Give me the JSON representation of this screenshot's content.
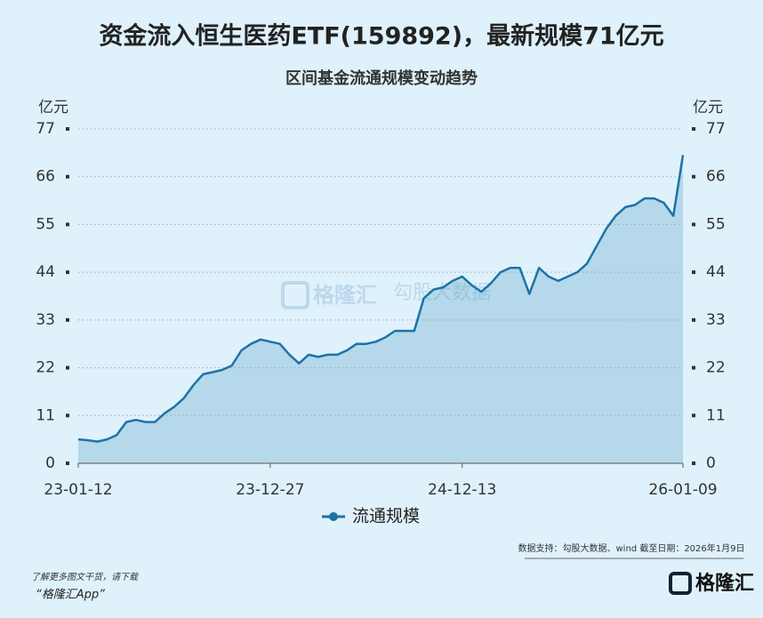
{
  "chart_data": {
    "type": "area",
    "title": "资金流入恒生医药ETF(159892)，最新规模71亿元",
    "subtitle": "区间基金流通规模变动趋势",
    "y_label": "亿元",
    "y2_label": "亿元",
    "categories": [
      "23-01-12",
      null,
      null,
      null,
      null,
      null,
      null,
      null,
      null,
      null,
      null,
      null,
      null,
      null,
      null,
      null,
      null,
      null,
      null,
      null,
      "23-12-27",
      null,
      null,
      null,
      null,
      null,
      null,
      null,
      null,
      null,
      null,
      null,
      null,
      null,
      null,
      null,
      null,
      null,
      null,
      null,
      "24-12-13",
      null,
      null,
      null,
      null,
      null,
      null,
      null,
      null,
      null,
      null,
      null,
      null,
      null,
      null,
      null,
      null,
      null,
      null,
      null,
      null,
      null,
      null,
      "26-01-09"
    ],
    "series": [
      {
        "name": "流通规模",
        "color": "#1d73a6",
        "fill": "#b5d8ea",
        "values": [
          5.5,
          5.3,
          5.0,
          5.5,
          6.5,
          9.5,
          10,
          9.5,
          9.5,
          11.5,
          13,
          15,
          18,
          20.5,
          21,
          21.5,
          22.5,
          26,
          27.5,
          28.5,
          28,
          27.5,
          25,
          23,
          25,
          24.5,
          25,
          25,
          26,
          27.5,
          27.5,
          28,
          29,
          30.5,
          30.5,
          30.5,
          38,
          40,
          40.5,
          42,
          43,
          41,
          39.5,
          41.5,
          44,
          45,
          45,
          39,
          45,
          43,
          42,
          43,
          44,
          46,
          50,
          54,
          57,
          59,
          59.5,
          61,
          61,
          60,
          57,
          71
        ]
      }
    ],
    "ylim": [
      0,
      77
    ],
    "yticks": [
      0,
      11,
      22,
      33,
      44,
      55,
      66,
      77
    ],
    "y2lim": [
      0,
      77
    ],
    "y2ticks": [
      0,
      11,
      22,
      33,
      44,
      55,
      66,
      77
    ],
    "grid": true,
    "source": "数据支持：勾股大数据、wind 截至日期：2026年1月9日"
  },
  "watermark": {
    "logo": "格隆汇",
    "data": "勾股大数据"
  },
  "footer": {
    "note": "了解更多图文干货，请下载",
    "app": "“格隆汇App”",
    "logo": "格隆汇"
  }
}
